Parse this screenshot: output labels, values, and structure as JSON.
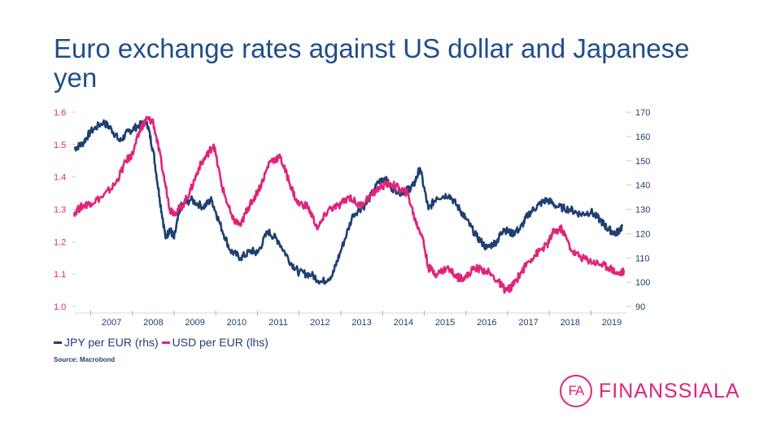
{
  "slide": {
    "title": "Euro exchange rates against US dollar and Japanese yen",
    "source": "Source: Macrobond"
  },
  "logo": {
    "mark": "FA",
    "text": "FINANSSIALA",
    "color": "#e0247a"
  },
  "chart_data": {
    "type": "line",
    "title": "",
    "left_axis": {
      "range": [
        1.0,
        1.6
      ],
      "ticks": [
        "1.0",
        "1.1",
        "1.2",
        "1.3",
        "1.4",
        "1.5",
        "1.6"
      ],
      "color": "#e0247a"
    },
    "right_axis": {
      "range": [
        90,
        170
      ],
      "ticks": [
        "90",
        "100",
        "110",
        "120",
        "130",
        "140",
        "150",
        "160",
        "170"
      ],
      "color": "#1f3f73"
    },
    "x_axis": {
      "range": [
        2006.6,
        2019.85
      ],
      "ticks": [
        "2007",
        "2008",
        "2009",
        "2010",
        "2011",
        "2012",
        "2013",
        "2014",
        "2015",
        "2016",
        "2017",
        "2018",
        "2019"
      ]
    },
    "grid": false,
    "legend": "bottom-left",
    "series": [
      {
        "name": "JPY per EUR (rhs)",
        "axis": "right",
        "color": "#1f3f73",
        "x": [
          2006.6,
          2006.8,
          2007.0,
          2007.3,
          2007.5,
          2007.7,
          2007.9,
          2008.1,
          2008.35,
          2008.5,
          2008.65,
          2008.8,
          2008.9,
          2009.0,
          2009.15,
          2009.4,
          2009.7,
          2009.9,
          2010.1,
          2010.35,
          2010.6,
          2010.85,
          2011.0,
          2011.25,
          2011.5,
          2011.8,
          2012.0,
          2012.3,
          2012.55,
          2012.8,
          2013.0,
          2013.3,
          2013.6,
          2013.9,
          2014.05,
          2014.2,
          2014.45,
          2014.6,
          2014.75,
          2014.9,
          2015.1,
          2015.3,
          2015.6,
          2015.85,
          2016.0,
          2016.25,
          2016.5,
          2016.75,
          2016.9,
          2017.1,
          2017.3,
          2017.5,
          2017.75,
          2017.95,
          2018.2,
          2018.5,
          2018.75,
          2019.0,
          2019.25,
          2019.4,
          2019.6,
          2019.75
        ],
        "values": [
          155,
          157,
          162,
          166,
          163,
          158,
          162,
          164,
          166,
          154,
          135,
          118,
          122,
          118,
          131,
          134,
          131,
          134,
          124,
          113,
          110,
          113,
          112,
          121,
          117,
          108,
          104,
          103,
          100,
          103,
          113,
          128,
          132,
          141,
          143,
          139,
          137,
          138,
          140,
          147,
          130,
          135,
          136,
          130,
          126,
          119,
          114,
          117,
          122,
          120,
          122,
          128,
          132,
          134,
          131,
          130,
          128,
          129,
          125,
          122,
          120,
          123
        ]
      },
      {
        "name": "USD per EUR (lhs)",
        "axis": "left",
        "color": "#e0247a",
        "x": [
          2006.6,
          2006.8,
          2007.0,
          2007.3,
          2007.6,
          2007.85,
          2008.0,
          2008.2,
          2008.35,
          2008.5,
          2008.7,
          2008.9,
          2009.0,
          2009.2,
          2009.4,
          2009.6,
          2009.8,
          2009.95,
          2010.15,
          2010.4,
          2010.6,
          2010.75,
          2010.9,
          2011.1,
          2011.3,
          2011.55,
          2011.75,
          2011.95,
          2012.2,
          2012.45,
          2012.7,
          2012.95,
          2013.2,
          2013.45,
          2013.7,
          2013.95,
          2014.2,
          2014.45,
          2014.6,
          2014.8,
          2014.95,
          2015.1,
          2015.3,
          2015.55,
          2015.8,
          2016.0,
          2016.2,
          2016.5,
          2016.75,
          2016.95,
          2017.1,
          2017.3,
          2017.5,
          2017.75,
          2017.95,
          2018.1,
          2018.3,
          2018.55,
          2018.8,
          2019.0,
          2019.25,
          2019.45,
          2019.65,
          2019.8
        ],
        "values": [
          1.29,
          1.31,
          1.32,
          1.34,
          1.38,
          1.45,
          1.47,
          1.55,
          1.58,
          1.57,
          1.44,
          1.3,
          1.29,
          1.31,
          1.36,
          1.43,
          1.47,
          1.5,
          1.37,
          1.27,
          1.25,
          1.3,
          1.33,
          1.38,
          1.45,
          1.46,
          1.39,
          1.32,
          1.31,
          1.24,
          1.3,
          1.31,
          1.34,
          1.31,
          1.34,
          1.37,
          1.38,
          1.36,
          1.35,
          1.26,
          1.22,
          1.12,
          1.1,
          1.12,
          1.09,
          1.09,
          1.12,
          1.11,
          1.08,
          1.05,
          1.06,
          1.1,
          1.14,
          1.17,
          1.19,
          1.23,
          1.24,
          1.17,
          1.15,
          1.14,
          1.13,
          1.12,
          1.1,
          1.11
        ]
      }
    ]
  }
}
